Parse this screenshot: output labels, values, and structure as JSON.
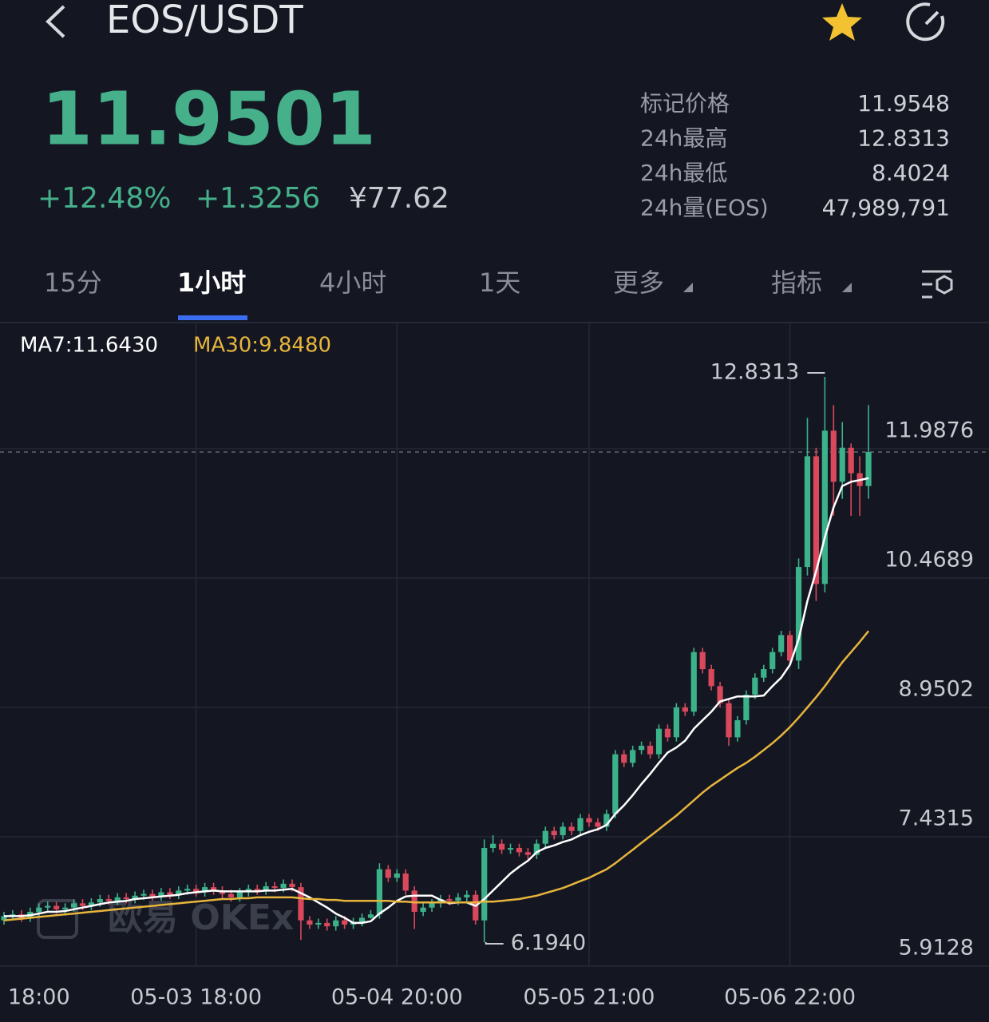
{
  "header": {
    "pair": "EOS/USDT",
    "price": "11.9501",
    "change_pct": "+12.48%",
    "change_abs": "+1.3256",
    "cny": "¥77.62",
    "stats": [
      {
        "label": "标记价格",
        "value": "11.9548"
      },
      {
        "label": "24h最高",
        "value": "12.8313"
      },
      {
        "label": "24h最低",
        "value": "8.4024"
      },
      {
        "label": "24h量(EOS)",
        "value": "47,989,791"
      }
    ]
  },
  "tabs": [
    "15分",
    "1小时",
    "4小时",
    "1天",
    "更多",
    "指标"
  ],
  "watermark": "欧易 OKEx",
  "chart_data": {
    "type": "candlestick",
    "categories": [
      null,
      null,
      null,
      null,
      "18:00",
      null,
      null,
      null,
      null,
      null,
      null,
      null,
      null,
      null,
      null,
      null,
      null,
      null,
      null,
      null,
      null,
      null,
      "05-03 18:00",
      null,
      null,
      null,
      null,
      null,
      null,
      null,
      null,
      null,
      null,
      null,
      null,
      null,
      null,
      null,
      null,
      null,
      null,
      null,
      null,
      null,
      null,
      "05-04 20:00",
      null,
      null,
      null,
      null,
      null,
      null,
      null,
      null,
      null,
      null,
      null,
      null,
      null,
      null,
      null,
      null,
      null,
      null,
      null,
      null,
      null,
      "05-05 21:00",
      null,
      null,
      null,
      null,
      null,
      null,
      null,
      null,
      null,
      null,
      null,
      null,
      null,
      null,
      null,
      null,
      null,
      null,
      null,
      null,
      null,
      null,
      "05-06 22:00",
      null,
      null,
      null,
      null,
      null,
      null,
      null,
      null,
      null
    ],
    "open": [
      6.45,
      6.5,
      6.52,
      6.48,
      6.55,
      6.6,
      6.62,
      6.58,
      6.6,
      6.65,
      6.62,
      6.66,
      6.7,
      6.68,
      6.72,
      6.7,
      6.74,
      6.76,
      6.73,
      6.78,
      6.75,
      6.8,
      6.82,
      6.78,
      6.84,
      6.8,
      6.76,
      6.72,
      6.78,
      6.82,
      6.8,
      6.85,
      6.83,
      6.88,
      6.84,
      6.45,
      6.4,
      6.42,
      6.38,
      6.45,
      6.4,
      6.43,
      6.48,
      6.52,
      7.05,
      6.95,
      7.0,
      6.8,
      6.55,
      6.6,
      6.65,
      6.7,
      6.68,
      6.72,
      6.75,
      6.45,
      7.3,
      7.35,
      7.28,
      7.3,
      7.25,
      7.22,
      7.35,
      7.5,
      7.45,
      7.55,
      7.5,
      7.65,
      7.6,
      7.55,
      7.7,
      8.4,
      8.3,
      8.45,
      8.5,
      8.4,
      8.7,
      8.6,
      8.95,
      8.9,
      9.6,
      9.4,
      9.2,
      9.0,
      8.6,
      8.8,
      9.1,
      9.3,
      9.4,
      9.6,
      9.8,
      9.5,
      10.6,
      11.9,
      10.4,
      12.2,
      11.6,
      12.0,
      11.7,
      11.55
    ],
    "high": [
      6.55,
      6.57,
      6.57,
      6.6,
      6.65,
      6.67,
      6.67,
      6.65,
      6.7,
      6.7,
      6.71,
      6.75,
      6.75,
      6.77,
      6.77,
      6.79,
      6.81,
      6.81,
      6.83,
      6.83,
      6.85,
      6.87,
      6.87,
      6.89,
      6.89,
      6.85,
      6.81,
      6.83,
      6.87,
      6.87,
      6.9,
      6.9,
      6.93,
      6.93,
      6.89,
      6.5,
      6.47,
      6.47,
      6.5,
      6.5,
      6.48,
      6.53,
      6.57,
      7.12,
      7.1,
      7.05,
      7.05,
      6.85,
      6.65,
      6.7,
      6.75,
      6.75,
      6.77,
      6.8,
      6.8,
      7.4,
      7.45,
      7.4,
      7.35,
      7.35,
      7.3,
      7.4,
      7.55,
      7.55,
      7.6,
      7.6,
      7.7,
      7.7,
      7.65,
      7.75,
      8.45,
      8.45,
      8.5,
      8.55,
      8.55,
      8.75,
      8.75,
      9.0,
      9.0,
      9.65,
      9.65,
      9.45,
      9.25,
      9.05,
      8.85,
      9.15,
      9.35,
      9.45,
      9.65,
      9.85,
      9.85,
      10.7,
      12.35,
      12.0,
      12.8313,
      12.5,
      12.3,
      12.05,
      11.9,
      12.5
    ],
    "low": [
      6.4,
      6.45,
      6.43,
      6.43,
      6.5,
      6.55,
      6.53,
      6.53,
      6.55,
      6.57,
      6.57,
      6.61,
      6.63,
      6.63,
      6.65,
      6.65,
      6.69,
      6.68,
      6.68,
      6.7,
      6.7,
      6.75,
      6.73,
      6.73,
      6.75,
      6.71,
      6.67,
      6.67,
      6.73,
      6.75,
      6.75,
      6.78,
      6.78,
      6.79,
      6.22,
      6.35,
      6.35,
      6.33,
      6.33,
      6.35,
      6.35,
      6.38,
      6.47,
      6.47,
      6.9,
      6.9,
      6.75,
      6.35,
      6.5,
      6.55,
      6.6,
      6.63,
      6.63,
      6.67,
      6.4,
      6.194,
      7.25,
      7.23,
      7.23,
      7.2,
      7.17,
      7.17,
      7.3,
      7.4,
      7.4,
      7.45,
      7.45,
      7.55,
      7.5,
      7.5,
      7.65,
      8.25,
      8.25,
      8.4,
      8.35,
      8.35,
      8.55,
      8.55,
      8.85,
      8.85,
      9.35,
      9.15,
      8.95,
      8.5,
      8.55,
      8.75,
      9.05,
      9.25,
      9.35,
      9.55,
      9.45,
      9.4,
      10.5,
      10.2,
      10.3,
      11.2,
      11.4,
      11.2,
      11.2,
      11.4
    ],
    "close": [
      6.5,
      6.52,
      6.48,
      6.55,
      6.6,
      6.62,
      6.58,
      6.6,
      6.65,
      6.62,
      6.66,
      6.7,
      6.68,
      6.72,
      6.7,
      6.74,
      6.76,
      6.73,
      6.78,
      6.75,
      6.8,
      6.82,
      6.78,
      6.84,
      6.8,
      6.76,
      6.72,
      6.78,
      6.82,
      6.8,
      6.85,
      6.83,
      6.88,
      6.84,
      6.45,
      6.4,
      6.42,
      6.38,
      6.45,
      6.4,
      6.43,
      6.48,
      6.52,
      7.05,
      6.95,
      7.0,
      6.8,
      6.55,
      6.6,
      6.65,
      6.7,
      6.68,
      6.72,
      6.75,
      6.45,
      7.3,
      7.35,
      7.28,
      7.3,
      7.25,
      7.22,
      7.35,
      7.5,
      7.45,
      7.55,
      7.5,
      7.65,
      7.6,
      7.55,
      7.7,
      8.4,
      8.3,
      8.45,
      8.5,
      8.4,
      8.7,
      8.6,
      8.95,
      8.9,
      9.6,
      9.4,
      9.2,
      9.0,
      8.6,
      8.8,
      9.1,
      9.3,
      9.4,
      9.6,
      9.8,
      9.5,
      10.6,
      11.9,
      10.4,
      12.2,
      11.6,
      12.0,
      11.7,
      11.55,
      11.9501
    ],
    "up_color": "#3cb28a",
    "down_color": "#d9485b",
    "series": [
      {
        "name": "MA7:11.6430",
        "color": "#ffffff",
        "values": [
          6.5,
          6.5,
          6.5,
          6.51,
          6.53,
          6.55,
          6.55,
          6.56,
          6.58,
          6.6,
          6.62,
          6.64,
          6.66,
          6.67,
          6.68,
          6.7,
          6.71,
          6.72,
          6.73,
          6.74,
          6.75,
          6.77,
          6.78,
          6.79,
          6.8,
          6.79,
          6.79,
          6.79,
          6.79,
          6.79,
          6.8,
          6.8,
          6.81,
          6.82,
          6.77,
          6.72,
          6.66,
          6.6,
          6.53,
          6.48,
          6.42,
          6.42,
          6.44,
          6.53,
          6.6,
          6.68,
          6.73,
          6.74,
          6.74,
          6.74,
          6.69,
          6.65,
          6.66,
          6.66,
          6.62,
          6.7,
          6.8,
          6.9,
          7.0,
          7.08,
          7.15,
          7.25,
          7.3,
          7.33,
          7.37,
          7.4,
          7.45,
          7.49,
          7.52,
          7.57,
          7.7,
          7.8,
          7.92,
          8.05,
          8.17,
          8.3,
          8.42,
          8.48,
          8.56,
          8.7,
          8.8,
          8.9,
          9.02,
          9.05,
          9.08,
          9.08,
          9.08,
          9.09,
          9.2,
          9.3,
          9.45,
          9.75,
          10.2,
          10.55,
          10.95,
          11.3,
          11.55,
          11.6,
          11.62,
          11.643
        ]
      },
      {
        "name": "MA30:9.8480",
        "color": "#e7b53c",
        "values": [
          6.45,
          6.46,
          6.47,
          6.48,
          6.49,
          6.5,
          6.51,
          6.52,
          6.53,
          6.54,
          6.55,
          6.56,
          6.57,
          6.58,
          6.59,
          6.6,
          6.61,
          6.62,
          6.63,
          6.64,
          6.65,
          6.66,
          6.67,
          6.68,
          6.69,
          6.7,
          6.7,
          6.71,
          6.71,
          6.72,
          6.72,
          6.72,
          6.72,
          6.72,
          6.71,
          6.7,
          6.7,
          6.69,
          6.69,
          6.68,
          6.68,
          6.68,
          6.68,
          6.68,
          6.68,
          6.67,
          6.67,
          6.66,
          6.66,
          6.66,
          6.66,
          6.66,
          6.66,
          6.66,
          6.66,
          6.67,
          6.67,
          6.68,
          6.69,
          6.7,
          6.72,
          6.74,
          6.77,
          6.8,
          6.83,
          6.87,
          6.91,
          6.95,
          7.0,
          7.05,
          7.12,
          7.2,
          7.28,
          7.36,
          7.44,
          7.52,
          7.6,
          7.68,
          7.77,
          7.86,
          7.95,
          8.03,
          8.1,
          8.17,
          8.24,
          8.3,
          8.37,
          8.45,
          8.53,
          8.62,
          8.72,
          8.83,
          8.95,
          9.07,
          9.2,
          9.34,
          9.48,
          9.6,
          9.72,
          9.848
        ]
      }
    ],
    "ylim": [
      5.9128,
      13.46
    ],
    "yticks": [
      5.9128,
      7.4315,
      8.9502,
      10.4689,
      11.9876
    ],
    "grid": true,
    "annotations": {
      "high": "12.8313",
      "low": "6.1940"
    }
  }
}
